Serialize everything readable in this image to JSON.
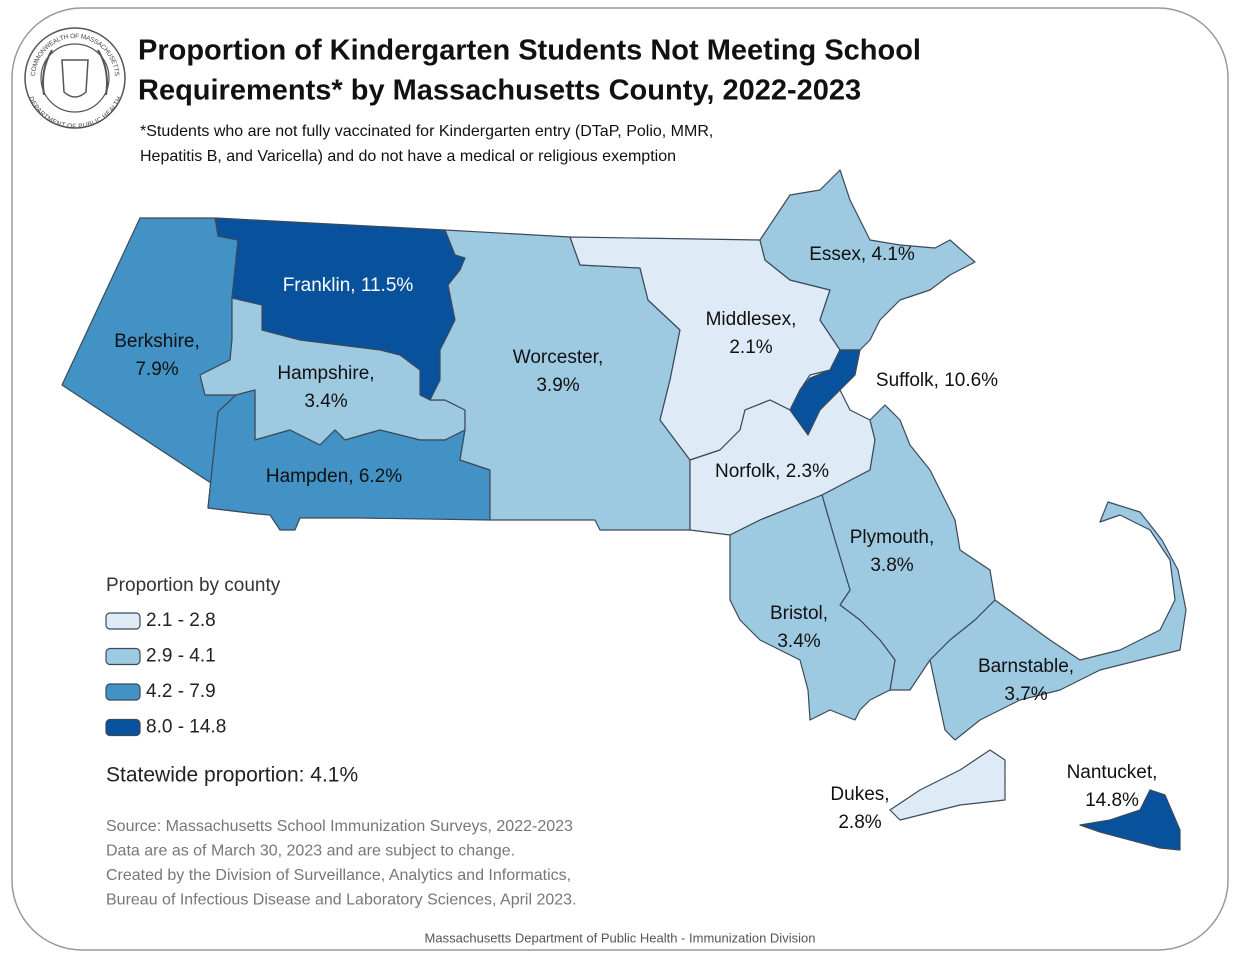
{
  "seal": {
    "top": "COMMONWEALTH OF MASSACHUSETTS",
    "bottom": "DEPARTMENT OF PUBLIC HEALTH"
  },
  "header": {
    "title_lines": [
      "Proportion of Kindergarten Students Not Meeting School",
      "Requirements* by Massachusetts County, 2022-2023"
    ],
    "subtitle_lines": [
      "*Students who are not fully vaccinated for Kindergarten entry (DTaP, Polio, MMR,",
      "Hepatitis B, and Varicella) and do not have a medical or religious exemption"
    ]
  },
  "counties": [
    {
      "label_lines": [
        "Berkshire,",
        "7.9%"
      ],
      "value": 7.9
    },
    {
      "label_lines": [
        "Franklin, 11.5%"
      ],
      "value": 11.5
    },
    {
      "label_lines": [
        "Hampshire,",
        "3.4%"
      ],
      "value": 3.4
    },
    {
      "label_lines": [
        "Hampden, 6.2%"
      ],
      "value": 6.2
    },
    {
      "label_lines": [
        "Worcester,",
        "3.9%"
      ],
      "value": 3.9
    },
    {
      "label_lines": [
        "Middlesex,",
        "2.1%"
      ],
      "value": 2.1
    },
    {
      "label_lines": [
        "Essex, 4.1%"
      ],
      "value": 4.1
    },
    {
      "label_lines": [
        "Suffolk, 10.6%"
      ],
      "value": 10.6
    },
    {
      "label_lines": [
        "Norfolk, 2.3%"
      ],
      "value": 2.3
    },
    {
      "label_lines": [
        "Plymouth,",
        "3.8%"
      ],
      "value": 3.8
    },
    {
      "label_lines": [
        "Bristol,",
        "3.4%"
      ],
      "value": 3.4
    },
    {
      "label_lines": [
        "Barnstable,",
        "3.7%"
      ],
      "value": 3.7
    },
    {
      "label_lines": [
        "Dukes,",
        "2.8%"
      ],
      "value": 2.8
    },
    {
      "label_lines": [
        "Nantucket,",
        "14.8%"
      ],
      "value": 14.8
    }
  ],
  "legend": {
    "title": "Proportion by county",
    "items": [
      {
        "label": "2.1 - 2.8",
        "min": 2.1,
        "max": 2.8,
        "color": "#deebf7"
      },
      {
        "label": "2.9 - 4.1",
        "min": 2.9,
        "max": 4.1,
        "color": "#9ecae1"
      },
      {
        "label": "4.2 - 7.9",
        "min": 4.2,
        "max": 7.9,
        "color": "#4292c6"
      },
      {
        "label": "8.0 - 14.8",
        "min": 8.0,
        "max": 14.8,
        "color": "#08519c"
      }
    ]
  },
  "statewide": "Statewide proportion: 4.1%",
  "source_lines": [
    "Source: Massachusetts School Immunization Surveys, 2022-2023",
    "Data are as of March 30, 2023 and are subject to change.",
    "Created by the Division of Surveillance, Analytics and Informatics,",
    "Bureau of Infectious Disease and Laboratory Sciences, April 2023."
  ],
  "footer": "Massachusetts Department of Public Health - Immunization Division"
}
